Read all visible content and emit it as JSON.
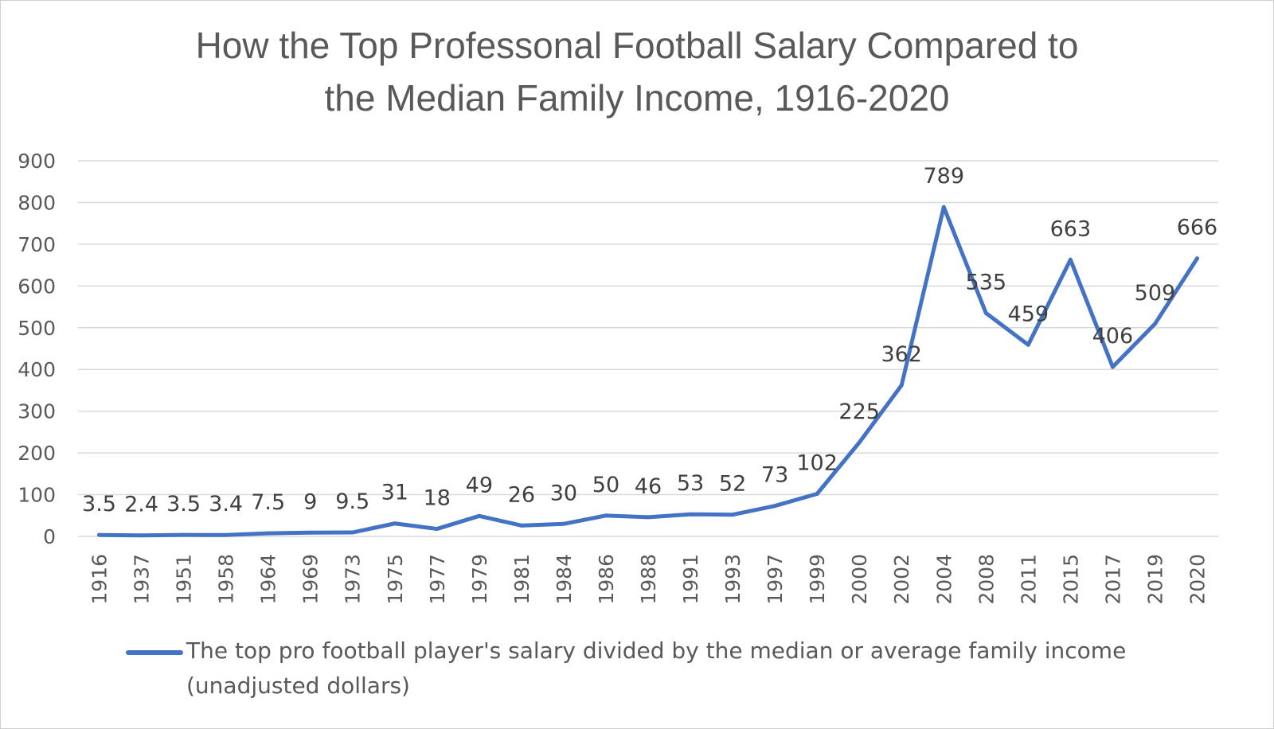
{
  "chart_data": {
    "type": "line",
    "title": [
      "How the Top Professonal Football Salary Compared to",
      "the Median Family Income, 1916-2020"
    ],
    "xlabel": "",
    "ylabel": "",
    "ylim": [
      0,
      900
    ],
    "yticks": [
      "0",
      "100",
      "200",
      "300",
      "400",
      "500",
      "600",
      "700",
      "800",
      "900"
    ],
    "grid": true,
    "legend_position": "bottom",
    "categories": [
      "1916",
      "1937",
      "1951",
      "1958",
      "1964",
      "1969",
      "1973",
      "1975",
      "1977",
      "1979",
      "1981",
      "1984",
      "1986",
      "1988",
      "1991",
      "1993",
      "1997",
      "1999",
      "2000",
      "2002",
      "2004",
      "2008",
      "2011",
      "2015",
      "2017",
      "2019",
      "2020"
    ],
    "series": [
      {
        "name": "The top pro football player's salary divided by the median or average family income (unadjusted dollars)",
        "values": [
          3.5,
          2.4,
          3.5,
          3.4,
          7.5,
          9,
          9.5,
          31,
          18,
          49,
          26,
          30,
          50,
          46,
          53,
          52,
          73,
          102,
          225,
          362,
          789,
          535,
          459,
          663,
          406,
          509,
          666
        ],
        "labels": [
          "3.5",
          "2.4",
          "3.5",
          "3.4",
          "7.5",
          "9",
          "9.5",
          "31",
          "18",
          "49",
          "26",
          "30",
          "50",
          "46",
          "53",
          "52",
          "73",
          "102",
          "225",
          "362",
          "789",
          "535",
          "459",
          "663",
          "406",
          "509",
          "666"
        ],
        "color": "#4472c4"
      }
    ],
    "legend_lines": [
      "The top pro football player's salary divided by the median or average family income",
      "(unadjusted dollars)"
    ]
  }
}
